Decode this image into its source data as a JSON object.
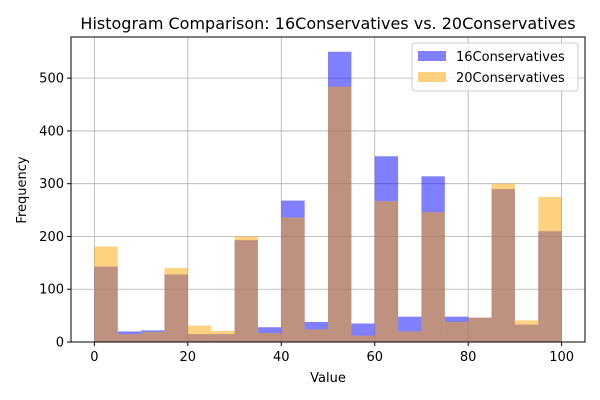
{
  "chart_data": {
    "type": "bar",
    "title": "Histogram Comparison: 16Conservatives vs. 20Conservatives",
    "xlabel": "Value",
    "ylabel": "Frequency",
    "xlim": [
      -5,
      105
    ],
    "ylim": [
      0,
      578
    ],
    "xticks": [
      0,
      20,
      40,
      60,
      80,
      100
    ],
    "yticks": [
      0,
      100,
      200,
      300,
      400,
      500
    ],
    "grid": true,
    "legend_position": "top-right",
    "bin_edges": [
      0,
      5,
      10,
      15,
      20,
      25,
      30,
      35,
      40,
      45,
      50,
      55,
      60,
      65,
      70,
      75,
      80,
      85,
      90,
      95,
      100
    ],
    "series": [
      {
        "name": "16Conservatives",
        "color": "#0000ff",
        "opacity": 0.5,
        "values": [
          143,
          20,
          22,
          128,
          15,
          15,
          193,
          28,
          268,
          38,
          550,
          35,
          352,
          48,
          314,
          48,
          46,
          290,
          33,
          210
        ]
      },
      {
        "name": "20Conservatives",
        "color": "#ffa500",
        "opacity": 0.5,
        "values": [
          181,
          15,
          19,
          140,
          31,
          21,
          200,
          17,
          236,
          24,
          484,
          12,
          267,
          20,
          246,
          38,
          46,
          300,
          41,
          275
        ]
      }
    ]
  }
}
